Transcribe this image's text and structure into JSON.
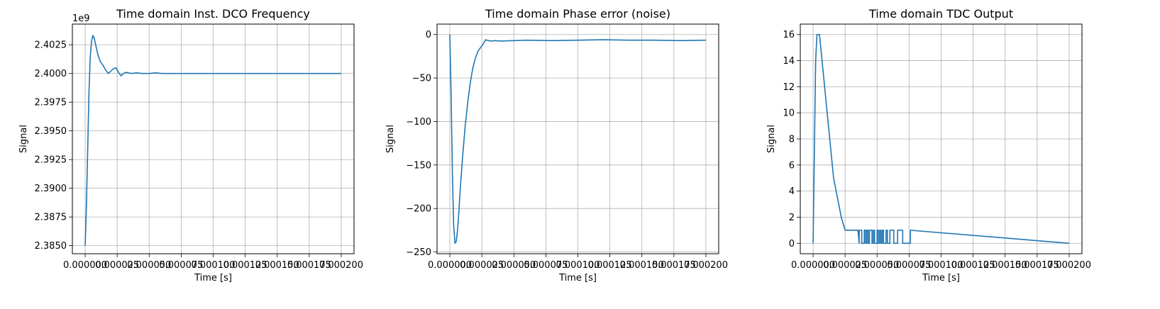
{
  "chart_data": [
    {
      "type": "line",
      "title": "Time domain Inst. DCO Frequency",
      "xlabel": "Time [s]",
      "ylabel": "Signal",
      "offset_text": "1e9",
      "grid": true,
      "xlim": [
        -1e-05,
        0.00021
      ],
      "ylim": [
        2.3843,
        2.4043
      ],
      "xticks": [
        0,
        2.5e-05,
        5e-05,
        7.5e-05,
        0.0001,
        0.000125,
        0.00015,
        0.000175,
        0.0002
      ],
      "xtick_labels": [
        "0.000000",
        "0.000025",
        "0.000050",
        "0.000075",
        "0.000100",
        "0.000125",
        "0.000150",
        "0.000175",
        "0.000200"
      ],
      "yticks": [
        2.385,
        2.3875,
        2.39,
        2.3925,
        2.395,
        2.3975,
        2.4,
        2.4025
      ],
      "ytick_labels": [
        "2.3850",
        "2.3875",
        "2.3900",
        "2.3925",
        "2.3950",
        "2.3975",
        "2.4000",
        "2.4025"
      ],
      "series": [
        {
          "x": [
            0,
            1e-06,
            2e-06,
            3e-06,
            4e-06,
            5e-06,
            6e-06,
            7e-06,
            8e-06,
            9e-06,
            1e-05,
            1.2e-05,
            1.4e-05,
            1.6e-05,
            1.8e-05,
            2e-05,
            2.2e-05,
            2.4e-05,
            2.6e-05,
            2.8e-05,
            3e-05,
            3.2e-05,
            3.4e-05,
            3.6e-05,
            4e-05,
            4.5e-05,
            5e-05,
            5.5e-05,
            6e-05,
            7e-05,
            8e-05,
            0.0001,
            0.00012,
            0.00014,
            0.00016,
            0.00018,
            0.0002
          ],
          "y": [
            2.385,
            2.3885,
            2.3935,
            2.3985,
            2.4015,
            2.4028,
            2.4033,
            2.4031,
            2.4026,
            2.4021,
            2.4016,
            2.401,
            2.4007,
            2.4003,
            2.4,
            2.4002,
            2.4004,
            2.4005,
            2.4001,
            2.3998,
            2.4,
            2.4001,
            2.40005,
            2.4,
            2.40005,
            2.4,
            2.4,
            2.40005,
            2.4,
            2.4,
            2.4,
            2.4,
            2.4,
            2.4,
            2.4,
            2.4,
            2.4
          ]
        }
      ]
    },
    {
      "type": "line",
      "title": "Time domain Phase error (noise)",
      "xlabel": "Time [s]",
      "ylabel": "Signal",
      "grid": true,
      "xlim": [
        -1e-05,
        0.00021
      ],
      "ylim": [
        -252,
        12
      ],
      "xticks": [
        0,
        2.5e-05,
        5e-05,
        7.5e-05,
        0.0001,
        0.000125,
        0.00015,
        0.000175,
        0.0002
      ],
      "xtick_labels": [
        "0.000000",
        "0.000025",
        "0.000050",
        "0.000075",
        "0.000100",
        "0.000125",
        "0.000150",
        "0.000175",
        "0.000200"
      ],
      "yticks": [
        0,
        -50,
        -100,
        -150,
        -200,
        -250
      ],
      "ytick_labels": [
        "0",
        "−50",
        "−100",
        "−150",
        "−200",
        "−250"
      ],
      "series": [
        {
          "x": [
            0,
            1e-06,
            2e-06,
            3e-06,
            4e-06,
            5e-06,
            6e-06,
            7e-06,
            8e-06,
            1e-05,
            1.2e-05,
            1.4e-05,
            1.6e-05,
            1.8e-05,
            2e-05,
            2.2e-05,
            2.4e-05,
            2.6e-05,
            2.8e-05,
            3e-05,
            3.2e-05,
            3.5e-05,
            4e-05,
            5e-05,
            6e-05,
            8e-05,
            0.0001,
            0.00012,
            0.00014,
            0.00016,
            0.00018,
            0.0002
          ],
          "y": [
            0,
            -70,
            -160,
            -220,
            -240,
            -238,
            -225,
            -205,
            -180,
            -140,
            -105,
            -78,
            -55,
            -38,
            -27,
            -19,
            -15,
            -11,
            -6,
            -7,
            -7.5,
            -7,
            -7.5,
            -7,
            -6.5,
            -7,
            -6.5,
            -6,
            -6.5,
            -6.5,
            -7,
            -6.5
          ]
        }
      ]
    },
    {
      "type": "line",
      "title": "Time domain TDC Output",
      "xlabel": "Time [s]",
      "ylabel": "Signal",
      "grid": true,
      "xlim": [
        -1e-05,
        0.00021
      ],
      "ylim": [
        -0.8,
        16.8
      ],
      "xticks": [
        0,
        2.5e-05,
        5e-05,
        7.5e-05,
        0.0001,
        0.000125,
        0.00015,
        0.000175,
        0.0002
      ],
      "xtick_labels": [
        "0.000000",
        "0.000025",
        "0.000050",
        "0.000075",
        "0.000100",
        "0.000125",
        "0.000150",
        "0.000175",
        "0.000200"
      ],
      "yticks": [
        0,
        2,
        4,
        6,
        8,
        10,
        12,
        14,
        16
      ],
      "ytick_labels": [
        "0",
        "2",
        "4",
        "6",
        "8",
        "10",
        "12",
        "14",
        "16"
      ],
      "series": [
        {
          "x": [
            0,
            2e-06,
            3e-06,
            5e-06,
            6e-06,
            7e-06,
            8e-06,
            9e-06,
            1e-05,
            1.1e-05,
            1.2e-05,
            1.3e-05,
            1.4e-05,
            1.5e-05,
            1.6e-05,
            1.8e-05,
            2e-05,
            2.2e-05,
            2.5e-05,
            3e-05,
            3.5e-05,
            3.6e-05,
            3.6e-05,
            3.8e-05,
            3.8e-05,
            4e-05,
            4e-05,
            4.1e-05,
            4.1e-05,
            4.2e-05,
            4.2e-05,
            4.3e-05,
            4.3e-05,
            4.4e-05,
            4.4e-05,
            4.6e-05,
            4.6e-05,
            4.7e-05,
            4.7e-05,
            4.8e-05,
            4.8e-05,
            5e-05,
            5e-05,
            5.1e-05,
            5.1e-05,
            5.2e-05,
            5.2e-05,
            5.3e-05,
            5.3e-05,
            5.4e-05,
            5.4e-05,
            5.5e-05,
            5.5e-05,
            5.7e-05,
            5.7e-05,
            5.8e-05,
            5.8e-05,
            6e-05,
            6e-05,
            6.3e-05,
            6.3e-05,
            6.6e-05,
            6.6e-05,
            7e-05,
            7e-05,
            7.6e-05,
            7.6e-05,
            0.0002
          ],
          "y": [
            0,
            14,
            16,
            16,
            15,
            14,
            13,
            12,
            11,
            10,
            9,
            8,
            7,
            6,
            5,
            4,
            3,
            2,
            1,
            1,
            1,
            0,
            1,
            1,
            0,
            0,
            1,
            1,
            0,
            0,
            1,
            1,
            0,
            0,
            1,
            1,
            0,
            0,
            1,
            1,
            0,
            0,
            1,
            1,
            0,
            0,
            1,
            1,
            0,
            0,
            1,
            1,
            0,
            0,
            1,
            1,
            0,
            0,
            1,
            1,
            0,
            0,
            1,
            1,
            0,
            0,
            1,
            0
          ]
        }
      ]
    }
  ]
}
